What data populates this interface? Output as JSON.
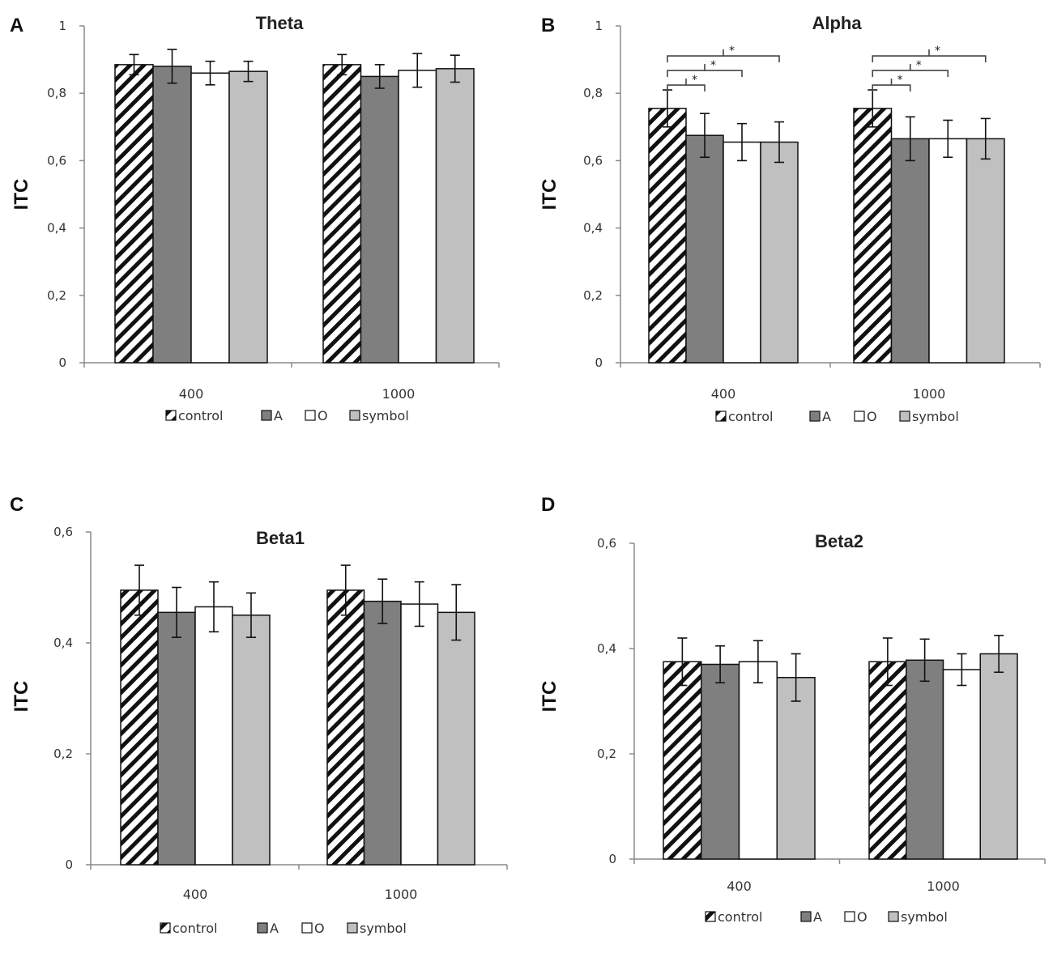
{
  "series_styles": [
    {
      "name": "control",
      "fill": "hatch",
      "color": "#ffffff"
    },
    {
      "name": "A",
      "fill": "solid",
      "color": "#7f7f7f"
    },
    {
      "name": "O",
      "fill": "solid",
      "color": "#ffffff"
    },
    {
      "name": "symbol",
      "fill": "solid",
      "color": "#c0c0c0"
    }
  ],
  "chart_data": [
    {
      "panel": "A",
      "type": "bar",
      "title": "Theta",
      "ylabel": "ITC",
      "xlabel": "",
      "categories": [
        "400",
        "1000"
      ],
      "ylim": [
        0,
        1
      ],
      "yticks": [
        0,
        0.2,
        0.4,
        0.6,
        0.8,
        1
      ],
      "ytick_labels": [
        "0",
        "0,2",
        "0,4",
        "0,6",
        "0,8",
        "1"
      ],
      "series": [
        {
          "name": "control",
          "values": [
            0.885,
            0.885
          ],
          "errors": [
            0.03,
            0.03
          ]
        },
        {
          "name": "A",
          "values": [
            0.88,
            0.85
          ],
          "errors": [
            0.05,
            0.035
          ]
        },
        {
          "name": "O",
          "values": [
            0.86,
            0.868
          ],
          "errors": [
            0.035,
            0.05
          ]
        },
        {
          "name": "symbol",
          "values": [
            0.865,
            0.873
          ],
          "errors": [
            0.03,
            0.04
          ]
        }
      ],
      "significance": [],
      "legend": [
        "control",
        "A",
        "O",
        "symbol"
      ],
      "legend_position": "bottom"
    },
    {
      "panel": "B",
      "type": "bar",
      "title": "Alpha",
      "ylabel": "ITC",
      "xlabel": "",
      "categories": [
        "400",
        "1000"
      ],
      "ylim": [
        0,
        1
      ],
      "yticks": [
        0,
        0.2,
        0.4,
        0.6,
        0.8,
        1
      ],
      "ytick_labels": [
        "0",
        "0,2",
        "0,4",
        "0,6",
        "0,8",
        "1"
      ],
      "series": [
        {
          "name": "control",
          "values": [
            0.755,
            0.755
          ],
          "errors": [
            0.055,
            0.055
          ]
        },
        {
          "name": "A",
          "values": [
            0.675,
            0.665
          ],
          "errors": [
            0.065,
            0.065
          ]
        },
        {
          "name": "O",
          "values": [
            0.655,
            0.665
          ],
          "errors": [
            0.055,
            0.055
          ]
        },
        {
          "name": "symbol",
          "values": [
            0.655,
            0.665
          ],
          "errors": [
            0.06,
            0.06
          ]
        }
      ],
      "significance": [
        {
          "category": 0,
          "from": "control",
          "to": "A",
          "label": "*"
        },
        {
          "category": 0,
          "from": "control",
          "to": "O",
          "label": "*"
        },
        {
          "category": 0,
          "from": "control",
          "to": "symbol",
          "label": "*"
        },
        {
          "category": 1,
          "from": "control",
          "to": "A",
          "label": "*"
        },
        {
          "category": 1,
          "from": "control",
          "to": "O",
          "label": "*"
        },
        {
          "category": 1,
          "from": "control",
          "to": "symbol",
          "label": "*"
        }
      ],
      "legend": [
        "control",
        "A",
        "O",
        "symbol"
      ],
      "legend_position": "bottom"
    },
    {
      "panel": "C",
      "type": "bar",
      "title": "Beta1",
      "ylabel": "ITC",
      "xlabel": "",
      "categories": [
        "400",
        "1000"
      ],
      "ylim": [
        0,
        0.6
      ],
      "yticks": [
        0,
        0.2,
        0.4,
        0.6
      ],
      "ytick_labels": [
        "0",
        "0,2",
        "0,4",
        "0,6"
      ],
      "series": [
        {
          "name": "control",
          "values": [
            0.495,
            0.495
          ],
          "errors": [
            0.045,
            0.045
          ]
        },
        {
          "name": "A",
          "values": [
            0.455,
            0.475
          ],
          "errors": [
            0.045,
            0.04
          ]
        },
        {
          "name": "O",
          "values": [
            0.465,
            0.47
          ],
          "errors": [
            0.045,
            0.04
          ]
        },
        {
          "name": "symbol",
          "values": [
            0.45,
            0.455
          ],
          "errors": [
            0.04,
            0.05
          ]
        }
      ],
      "significance": [],
      "legend": [
        "control",
        "A",
        "O",
        "symbol"
      ],
      "legend_position": "bottom"
    },
    {
      "panel": "D",
      "type": "bar",
      "title": "Beta2",
      "ylabel": "ITC",
      "xlabel": "",
      "categories": [
        "400",
        "1000"
      ],
      "ylim": [
        0,
        0.6
      ],
      "yticks": [
        0,
        0.2,
        0.4,
        0.6
      ],
      "ytick_labels": [
        "0",
        "0,2",
        "0,4",
        "0,6"
      ],
      "series": [
        {
          "name": "control",
          "values": [
            0.375,
            0.375
          ],
          "errors": [
            0.045,
            0.045
          ]
        },
        {
          "name": "A",
          "values": [
            0.37,
            0.378
          ],
          "errors": [
            0.035,
            0.04
          ]
        },
        {
          "name": "O",
          "values": [
            0.375,
            0.36
          ],
          "errors": [
            0.04,
            0.03
          ]
        },
        {
          "name": "symbol",
          "values": [
            0.345,
            0.39
          ],
          "errors": [
            0.045,
            0.035
          ]
        }
      ],
      "significance": [],
      "legend": [
        "control",
        "A",
        "O",
        "symbol"
      ],
      "legend_position": "bottom"
    }
  ]
}
